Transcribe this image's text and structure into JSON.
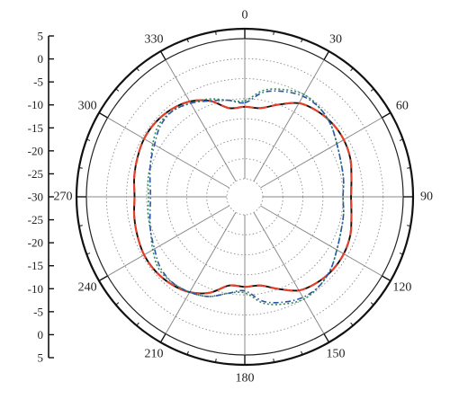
{
  "chart_data": {
    "type": "polar-line",
    "title": "",
    "radial_axis": {
      "unit": "dB",
      "min": -30,
      "max": 5,
      "tick_step": 5,
      "tick_labels": [
        "5",
        "0",
        "-5",
        "-10",
        "-15",
        "-20",
        "-25",
        "-30",
        "-25",
        "-20",
        "-15",
        "-10",
        "-5",
        "0",
        "5"
      ]
    },
    "angular_axis": {
      "direction": "clockwise",
      "zero_at": "top",
      "tick_step": 30,
      "tick_labels": [
        "0",
        "30",
        "60",
        "90",
        "120",
        "150",
        "180",
        "210",
        "240",
        "270",
        "300",
        "330"
      ]
    },
    "grid": true,
    "legend": "none",
    "series": [
      {
        "style": "solid",
        "color": "#111111",
        "angles": [
          0,
          10,
          20,
          30,
          40,
          50,
          60,
          70,
          80,
          90,
          100,
          110,
          120,
          130,
          140,
          150,
          160,
          170,
          180,
          190,
          200,
          210,
          220,
          230,
          240,
          250,
          260,
          270,
          280,
          290,
          300,
          310,
          320,
          330,
          340,
          350
        ],
        "values": [
          -12,
          -12,
          -10,
          -7.5,
          -6.5,
          -6,
          -6,
          -6.5,
          -7.5,
          -8,
          -7.5,
          -6.5,
          -6,
          -6,
          -6.5,
          -7.5,
          -10,
          -12,
          -12,
          -12,
          -9,
          -7,
          -6,
          -5.5,
          -5.5,
          -6,
          -6.5,
          -7,
          -6.5,
          -6,
          -5.5,
          -5.5,
          -6,
          -7,
          -9,
          -12
        ]
      },
      {
        "style": "dashed",
        "color": "#e2402a",
        "angles": [
          0,
          10,
          20,
          30,
          40,
          50,
          60,
          70,
          80,
          90,
          100,
          110,
          120,
          130,
          140,
          150,
          160,
          170,
          180,
          190,
          200,
          210,
          220,
          230,
          240,
          250,
          260,
          270,
          280,
          290,
          300,
          310,
          320,
          330,
          340,
          350
        ],
        "values": [
          -12,
          -12,
          -10,
          -7.5,
          -6.5,
          -6,
          -6,
          -6.5,
          -7.5,
          -8,
          -7.5,
          -6.5,
          -6,
          -6,
          -6.5,
          -7.5,
          -10,
          -12,
          -12,
          -12,
          -9,
          -7,
          -6,
          -5.5,
          -5.5,
          -6,
          -6.5,
          -7,
          -6.5,
          -6,
          -5.5,
          -5.5,
          -6,
          -7,
          -9,
          -12
        ]
      },
      {
        "style": "dotted",
        "color": "#2e8b57",
        "angles": [
          0,
          10,
          20,
          30,
          40,
          50,
          60,
          70,
          80,
          90,
          100,
          110,
          120,
          130,
          140,
          150,
          160,
          170,
          180,
          190,
          200,
          210,
          220,
          230,
          240,
          250,
          260,
          270,
          280,
          290,
          300,
          310,
          320,
          330,
          340,
          350
        ],
        "values": [
          -10.5,
          -7.5,
          -6,
          -5,
          -5.5,
          -6.5,
          -8,
          -9,
          -9.5,
          -10,
          -9.5,
          -9,
          -8,
          -6.5,
          -5.5,
          -5,
          -6,
          -7.5,
          -10.5,
          -10,
          -8,
          -7,
          -6.5,
          -6.5,
          -8,
          -9.5,
          -10,
          -10.5,
          -10,
          -9.5,
          -8,
          -6.5,
          -6.5,
          -7.5,
          -8.5,
          -10
        ]
      },
      {
        "style": "dash-dot",
        "color": "#2b55a8",
        "angles": [
          0,
          10,
          20,
          30,
          40,
          50,
          60,
          70,
          80,
          90,
          100,
          110,
          120,
          130,
          140,
          150,
          160,
          170,
          180,
          190,
          200,
          210,
          220,
          230,
          240,
          250,
          260,
          270,
          280,
          290,
          300,
          310,
          320,
          330,
          340,
          350
        ],
        "values": [
          -11,
          -8,
          -6.5,
          -5.5,
          -5.5,
          -6.5,
          -8,
          -9,
          -9.5,
          -10,
          -9.5,
          -9,
          -8,
          -6.5,
          -5.5,
          -5.5,
          -6.5,
          -8,
          -11,
          -10,
          -8,
          -7,
          -6.5,
          -7,
          -8.5,
          -9.5,
          -10.5,
          -11,
          -10.5,
          -9.5,
          -8.5,
          -7,
          -6.5,
          -7.5,
          -9,
          -10
        ]
      }
    ]
  }
}
